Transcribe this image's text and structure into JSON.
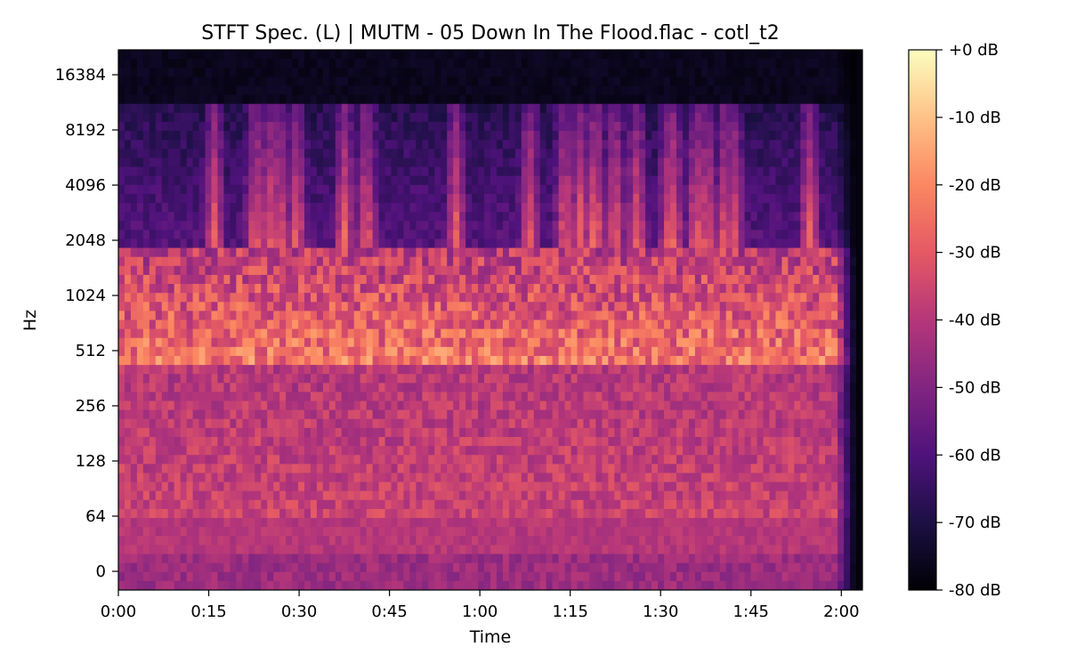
{
  "chart_data": {
    "type": "heatmap",
    "title": "STFT Spec. (L) | MUTM - 05 Down In The Flood.flac - cotl_t2",
    "xlabel": "Time",
    "ylabel": "Hz",
    "x_tick_labels": [
      "0:00",
      "0:15",
      "0:30",
      "0:45",
      "1:00",
      "1:15",
      "1:30",
      "1:45",
      "2:00"
    ],
    "x_tick_seconds": [
      0,
      15,
      30,
      45,
      60,
      75,
      90,
      105,
      120
    ],
    "xlim_seconds": [
      0,
      123.5
    ],
    "y_tick_labels": [
      "0",
      "64",
      "128",
      "256",
      "512",
      "1024",
      "2048",
      "4096",
      "8192",
      "16384"
    ],
    "y_tick_hz": [
      0,
      64,
      128,
      256,
      512,
      1024,
      2048,
      4096,
      8192,
      16384
    ],
    "y_scale": "log2 (symlog)",
    "colorbar": {
      "labels": [
        "+0 dB",
        "-10 dB",
        "-20 dB",
        "-30 dB",
        "-40 dB",
        "-50 dB",
        "-60 dB",
        "-70 dB",
        "-80 dB"
      ],
      "values_db": [
        0,
        -10,
        -20,
        -30,
        -40,
        -50,
        -60,
        -70,
        -80
      ],
      "range_db": [
        -80,
        0
      ],
      "colormap": "magma"
    },
    "audio_end_seconds": 119,
    "grid": false,
    "legend": "none"
  },
  "colors": {
    "magma": [
      "#000004",
      "#1c1044",
      "#4f127b",
      "#812581",
      "#b5367a",
      "#e55964",
      "#fb8761",
      "#fec287",
      "#fcfdbf"
    ]
  }
}
